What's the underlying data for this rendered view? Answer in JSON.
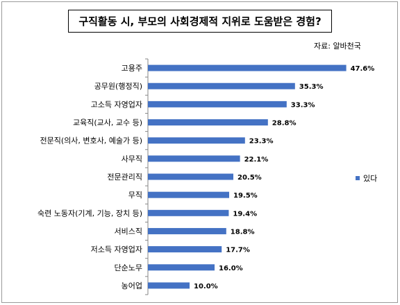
{
  "source": "자료: 알바천국",
  "colors": {
    "bar": "#4472c4",
    "axis": "#868686"
  },
  "chart_data": {
    "type": "bar",
    "orientation": "horizontal",
    "title": "구직활동 시, 부모의 사회경제적 지위로 도움받은 경험?",
    "categories": [
      "고용주",
      "공무원(행정직)",
      "고소득 자영업자",
      "교육직(교사, 교수 등)",
      "전문직(의사, 변호사, 예술가 등)",
      "사무직",
      "전문관리직",
      "무직",
      "숙련 노동자(기계, 기능, 장치 등)",
      "서비스직",
      "저소득 자영업자",
      "단순노무",
      "농어업"
    ],
    "series": [
      {
        "name": "있다",
        "values": [
          47.6,
          35.3,
          33.3,
          28.8,
          23.3,
          22.1,
          20.5,
          19.5,
          19.4,
          18.8,
          17.7,
          16.0,
          10.0
        ],
        "labels": [
          "47.6%",
          "35.3%",
          "33.3%",
          "28.8%",
          "23.3%",
          "22.1%",
          "20.5%",
          "19.5%",
          "19.4%",
          "18.8%",
          "17.7%",
          "16.0%",
          "10.0%"
        ]
      }
    ],
    "xlim": [
      0,
      50
    ],
    "legend_position": "right",
    "grid": false
  }
}
